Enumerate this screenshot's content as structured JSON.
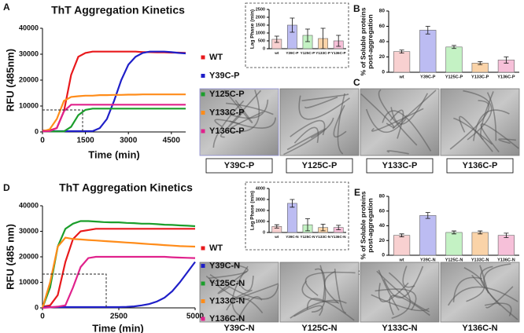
{
  "panels": [
    "A",
    "B",
    "C",
    "D",
    "E",
    "F"
  ],
  "micrograph_labels": [
    [
      "Y39C-P",
      "Y125C-P",
      "Y133C-P",
      "Y136C-P"
    ],
    [
      "Y39C-N",
      "Y125C-N",
      "Y133C-N",
      "Y136C-N"
    ]
  ],
  "chart_data": [
    {
      "type": "line",
      "title": "ThT Aggregation Kinetics",
      "xlabel": "Time (min)",
      "ylabel": "RFU (485nm)",
      "xlim": [
        0,
        5000
      ],
      "xticks": [
        0,
        1500,
        3000,
        4500
      ],
      "ylim": [
        0,
        40000
      ],
      "yticks": [
        0,
        10000,
        20000,
        30000,
        40000
      ],
      "x": [
        0,
        250,
        500,
        750,
        1000,
        1250,
        1500,
        1750,
        2000,
        2250,
        2500,
        2750,
        3000,
        3250,
        3500,
        3750,
        4000,
        4250,
        4500,
        4750,
        5000
      ],
      "series": [
        {
          "name": "WT",
          "color": "#e8191c",
          "values": [
            500,
            600,
            1500,
            8000,
            22000,
            29000,
            30500,
            31000,
            31000,
            31000,
            31000,
            31000,
            31000,
            31000,
            30800,
            30800,
            30700,
            30700,
            30600,
            30600,
            30500
          ]
        },
        {
          "name": "Y39C-P",
          "color": "#1f1fc8",
          "values": [
            300,
            300,
            300,
            300,
            300,
            300,
            300,
            300,
            1500,
            5000,
            12000,
            20000,
            26000,
            29000,
            30500,
            31000,
            31000,
            31000,
            30800,
            30500,
            30300
          ]
        },
        {
          "name": "Y125C-P",
          "color": "#1b9e2b",
          "values": [
            200,
            200,
            200,
            200,
            2000,
            6500,
            8500,
            9000,
            9000,
            9000,
            9000,
            9000,
            9000,
            9000,
            9000,
            9000,
            9000,
            9000,
            9000,
            9000,
            9000
          ]
        },
        {
          "name": "Y133C-P",
          "color": "#ff8c1a",
          "values": [
            200,
            1000,
            5000,
            12000,
            13500,
            13800,
            14000,
            14000,
            14200,
            14200,
            14300,
            14300,
            14400,
            14400,
            14500,
            14500,
            14500,
            14500,
            14500,
            14500,
            14500
          ]
        },
        {
          "name": "Y136C-P",
          "color": "#e0228c",
          "values": [
            200,
            300,
            1500,
            8000,
            10500,
            10500,
            10500,
            10500,
            10500,
            10500,
            10500,
            10500,
            10500,
            10500,
            10500,
            10500,
            10500,
            10500,
            10500,
            10500,
            10500
          ]
        }
      ]
    },
    {
      "type": "bar",
      "ylabel": "Lag Phase (min)",
      "categories": [
        "wt",
        "Y39C-P",
        "Y125C-P",
        "Y133C-P",
        "Y136C-P"
      ],
      "values": [
        600,
        1500,
        850,
        650,
        500
      ],
      "errors": [
        200,
        450,
        400,
        650,
        350
      ],
      "colors": [
        "#f8d0d0",
        "#bcbcf2",
        "#c4f2c4",
        "#fad3a8",
        "#f6c0d9"
      ],
      "ylim": [
        0,
        2500
      ],
      "yticks": [
        0,
        500,
        1000,
        1500,
        2000,
        2500
      ]
    },
    {
      "type": "bar",
      "ylabel": [
        "% of Soluble proteins",
        "post-aggregation"
      ],
      "categories": [
        "wt",
        "Y39C-P",
        "Y125C-P",
        "Y133C-P",
        "Y136C-P"
      ],
      "values": [
        27,
        55,
        33,
        12,
        16
      ],
      "errors": [
        2,
        5,
        2,
        2,
        4
      ],
      "colors": [
        "#f8d0d0",
        "#bcbcf2",
        "#c4f2c4",
        "#fad3a8",
        "#f6c0d9"
      ],
      "ylim": [
        0,
        80
      ],
      "yticks": [
        0,
        20,
        40,
        60,
        80
      ]
    },
    {
      "type": "line",
      "title": "ThT Aggregation Kinetics",
      "xlabel": "Time (min)",
      "ylabel": "RFU (485 nm)",
      "xlim": [
        0,
        5000
      ],
      "xticks": [
        0,
        2500,
        5000
      ],
      "ylim": [
        0,
        40000
      ],
      "yticks": [
        0,
        10000,
        20000,
        30000,
        40000
      ],
      "x": [
        0,
        250,
        500,
        750,
        1000,
        1250,
        1500,
        1750,
        2000,
        2250,
        2500,
        2750,
        3000,
        3250,
        3500,
        3750,
        4000,
        4250,
        4500,
        4750,
        5000
      ],
      "series": [
        {
          "name": "WT",
          "color": "#e8191c",
          "values": [
            500,
            1000,
            5000,
            18000,
            27000,
            30000,
            30500,
            31000,
            31000,
            31000,
            31000,
            31000,
            31000,
            31000,
            31000,
            31000,
            31000,
            31000,
            31000,
            31000,
            31000
          ]
        },
        {
          "name": "Y39C-N",
          "color": "#1f1fc8",
          "values": [
            300,
            300,
            300,
            300,
            300,
            300,
            300,
            300,
            300,
            300,
            300,
            400,
            600,
            1000,
            1500,
            2500,
            4000,
            6500,
            10000,
            14000,
            18000
          ]
        },
        {
          "name": "Y125C-N",
          "color": "#1b9e2b",
          "values": [
            0,
            8000,
            24000,
            31000,
            33000,
            34000,
            34000,
            33800,
            33600,
            33500,
            33500,
            33300,
            33200,
            33000,
            33000,
            32800,
            32600,
            32500,
            32300,
            32200,
            32000
          ]
        },
        {
          "name": "Y133C-N",
          "color": "#ff8c1a",
          "values": [
            0,
            10000,
            24000,
            27500,
            27000,
            26800,
            26600,
            26400,
            26200,
            26000,
            25800,
            25600,
            25400,
            25200,
            25000,
            24800,
            24600,
            24400,
            24200,
            24100,
            24000
          ]
        },
        {
          "name": "Y136C-N",
          "color": "#e0228c",
          "values": [
            0,
            200,
            500,
            1000,
            8000,
            16000,
            19500,
            20000,
            20000,
            20000,
            20000,
            20000,
            20000,
            20000,
            20000,
            20000,
            20000,
            19800,
            19700,
            19600,
            19500
          ]
        }
      ]
    },
    {
      "type": "bar",
      "ylabel": "Lag Phase (min)",
      "categories": [
        "wt",
        "Y39C-N",
        "Y125C-N",
        "Y133C-N",
        "Y136C-N"
      ],
      "values": [
        550,
        2650,
        700,
        450,
        450
      ],
      "errors": [
        150,
        350,
        550,
        300,
        200
      ],
      "colors": [
        "#f8d0d0",
        "#bcbcf2",
        "#c4f2c4",
        "#fad3a8",
        "#f6c0d9"
      ],
      "ylim": [
        0,
        4000
      ],
      "yticks": [
        0,
        1000,
        2000,
        3000,
        4000
      ]
    },
    {
      "type": "bar",
      "ylabel": [
        "% of Soluble proteins",
        "post-aggregation"
      ],
      "categories": [
        "wt",
        "Y39C-N",
        "Y125C-N",
        "Y133C-N",
        "Y136C-N"
      ],
      "values": [
        27,
        54,
        31,
        31,
        27
      ],
      "errors": [
        2,
        4,
        2,
        2,
        3
      ],
      "colors": [
        "#f8d0d0",
        "#bcbcf2",
        "#c4f2c4",
        "#fad3a8",
        "#f6c0d9"
      ],
      "ylim": [
        0,
        80
      ],
      "yticks": [
        0,
        20,
        40,
        60,
        80
      ]
    }
  ]
}
